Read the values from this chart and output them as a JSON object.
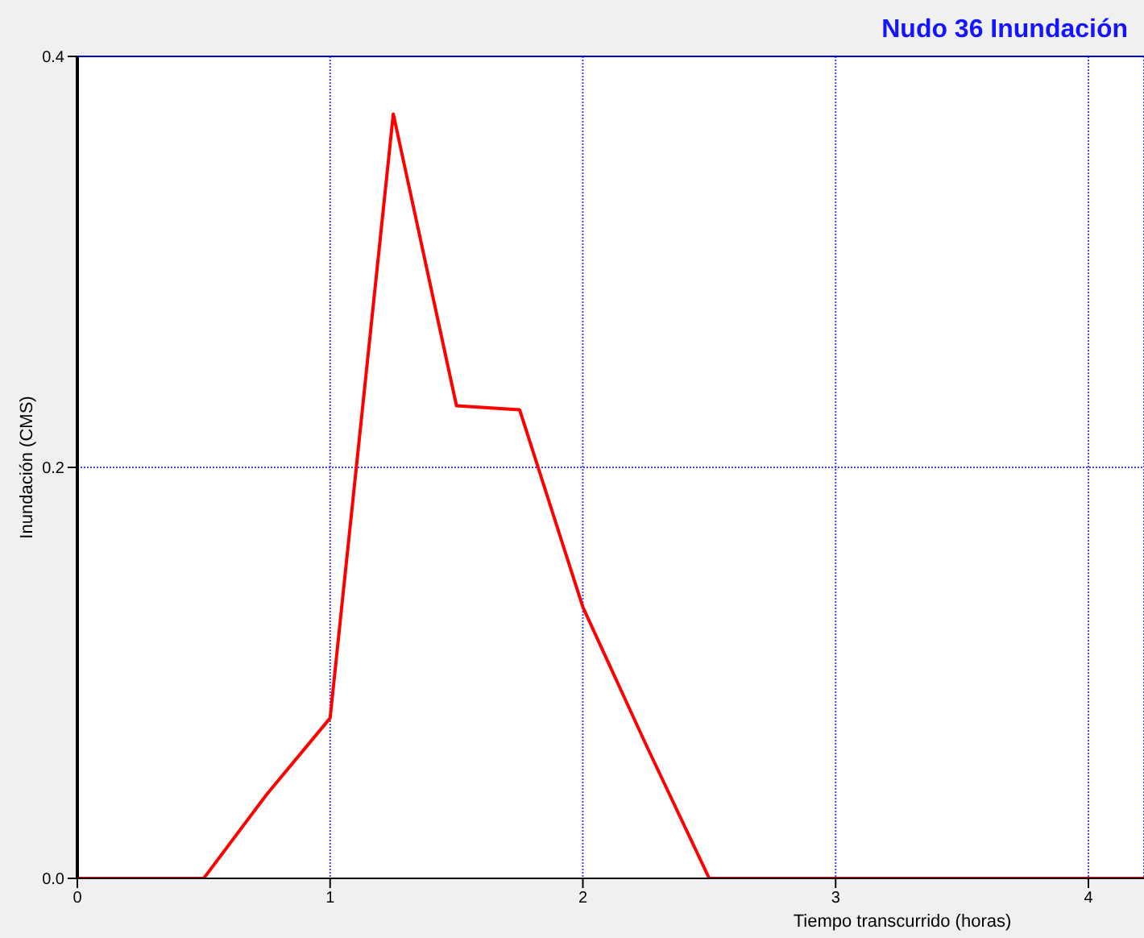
{
  "chart_data": {
    "type": "line",
    "title": "Nudo 36 Inundación",
    "xlabel": "Tiempo transcurrido (horas)",
    "ylabel": "Inundación (CMS)",
    "x": [
      0,
      0.5,
      0.75,
      1,
      1.25,
      1.5,
      1.75,
      2,
      2.25,
      2.5,
      4.22
    ],
    "series": [
      {
        "color": "#ff0000",
        "values": [
          0,
          0,
          0.041,
          0.078,
          0.372,
          0.23,
          0.228,
          0.132,
          0.065,
          0,
          0
        ]
      }
    ],
    "xlim": [
      0,
      4.22
    ],
    "xticks": [
      0,
      1,
      2,
      3,
      4
    ],
    "ylim": [
      0,
      0.4
    ],
    "yticks": [
      {
        "value": 0,
        "label": "0.0"
      },
      0.2,
      0.4
    ],
    "grid": true,
    "marker": "none",
    "line_style": "solid"
  }
}
